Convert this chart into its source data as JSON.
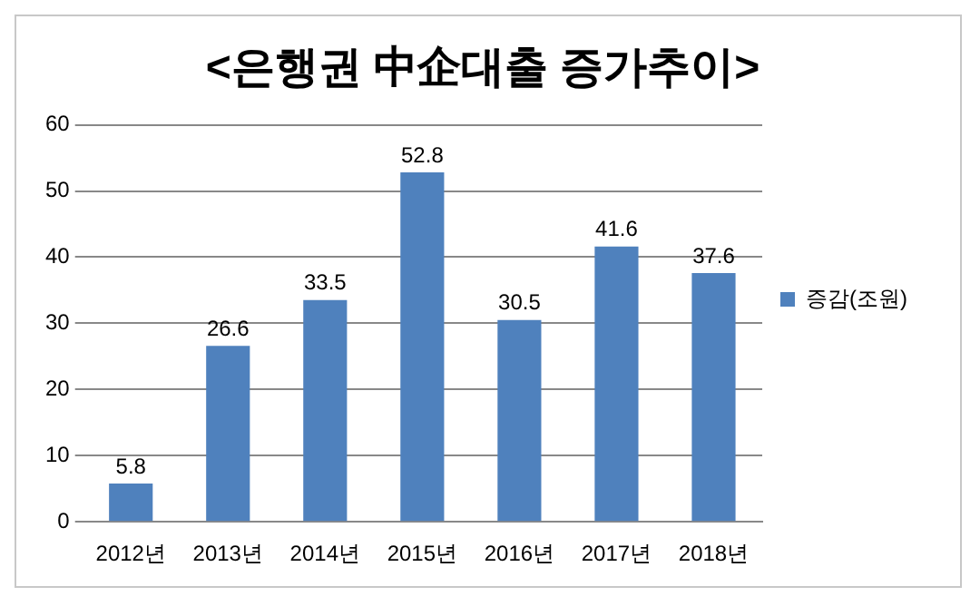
{
  "chart_data": {
    "type": "bar",
    "title": "<은행권 中企대출 증가추이>",
    "categories": [
      "2012년",
      "2013년",
      "2014년",
      "2015년",
      "2016년",
      "2017년",
      "2018년"
    ],
    "series": [
      {
        "name": "증감(조원)",
        "color": "#4f81bd",
        "values": [
          5.8,
          26.6,
          33.5,
          52.8,
          30.5,
          41.6,
          37.6
        ]
      }
    ],
    "ylim": [
      0,
      60
    ],
    "yticks": [
      0,
      10,
      20,
      30,
      40,
      50,
      60
    ],
    "grid": "y",
    "legend": "right",
    "data_labels": true
  }
}
